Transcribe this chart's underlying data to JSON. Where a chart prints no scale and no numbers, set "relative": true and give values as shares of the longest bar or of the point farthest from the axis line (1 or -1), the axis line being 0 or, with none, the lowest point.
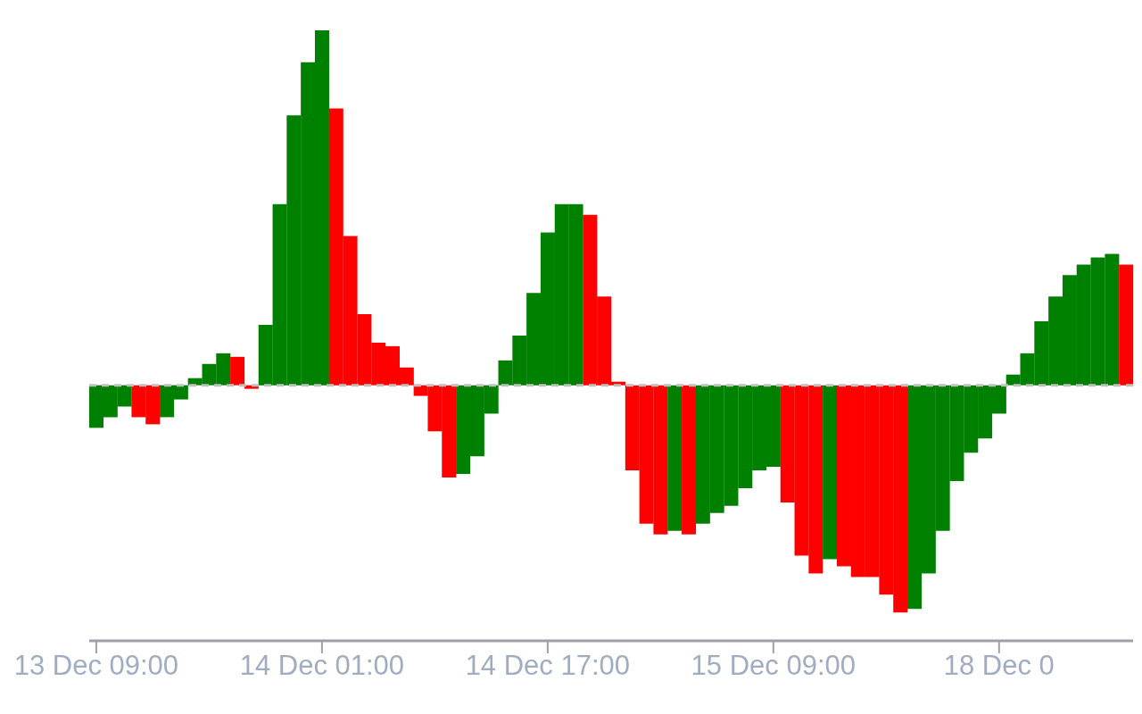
{
  "chart_data": {
    "type": "bar",
    "relative": true,
    "legend": false,
    "grid": false,
    "categories": [
      "13 Dec 09:00",
      null,
      null,
      null,
      null,
      null,
      null,
      null,
      null,
      null,
      null,
      null,
      null,
      null,
      null,
      null,
      "14 Dec 01:00",
      null,
      null,
      null,
      null,
      null,
      null,
      null,
      null,
      null,
      null,
      null,
      null,
      null,
      null,
      null,
      "14 Dec 17:00",
      null,
      null,
      null,
      null,
      null,
      null,
      null,
      null,
      null,
      null,
      null,
      null,
      null,
      null,
      null,
      "15 Dec 09:00",
      null,
      null,
      null,
      null,
      null,
      null,
      null,
      null,
      null,
      null,
      null,
      null,
      null,
      null,
      null,
      "18 Dec 0",
      null,
      null,
      null,
      null,
      null,
      null,
      null,
      null,
      null
    ],
    "values": [
      -0.12,
      -0.09,
      -0.06,
      -0.09,
      -0.11,
      -0.09,
      -0.04,
      0.02,
      0.06,
      0.09,
      0.08,
      -0.01,
      0.17,
      0.51,
      0.76,
      0.91,
      1,
      0.78,
      0.42,
      0.2,
      0.12,
      0.11,
      0.05,
      -0.03,
      -0.13,
      -0.26,
      -0.25,
      -0.2,
      -0.08,
      0.07,
      0.14,
      0.26,
      0.43,
      0.51,
      0.51,
      0.48,
      0.25,
      0.01,
      -0.24,
      -0.39,
      -0.42,
      -0.41,
      -0.42,
      -0.39,
      -0.36,
      -0.34,
      -0.29,
      -0.24,
      -0.23,
      -0.33,
      -0.48,
      -0.53,
      -0.49,
      -0.51,
      -0.54,
      -0.54,
      -0.59,
      -0.64,
      -0.63,
      -0.53,
      -0.41,
      -0.27,
      -0.19,
      -0.15,
      -0.08,
      0.03,
      0.09,
      0.18,
      0.25,
      0.31,
      0.34,
      0.36,
      0.37,
      0.34
    ],
    "colors": [
      "#008000",
      "#008000",
      "#008000",
      "#ff0000",
      "#ff0000",
      "#008000",
      "#008000",
      "#008000",
      "#008000",
      "#008000",
      "#ff0000",
      "#ff0000",
      "#008000",
      "#008000",
      "#008000",
      "#008000",
      "#008000",
      "#ff0000",
      "#ff0000",
      "#ff0000",
      "#ff0000",
      "#ff0000",
      "#ff0000",
      "#ff0000",
      "#ff0000",
      "#ff0000",
      "#008000",
      "#008000",
      "#008000",
      "#008000",
      "#008000",
      "#008000",
      "#008000",
      "#008000",
      "#008000",
      "#ff0000",
      "#ff0000",
      "#ff0000",
      "#ff0000",
      "#ff0000",
      "#ff0000",
      "#008000",
      "#ff0000",
      "#008000",
      "#008000",
      "#008000",
      "#008000",
      "#008000",
      "#008000",
      "#ff0000",
      "#ff0000",
      "#ff0000",
      "#008000",
      "#ff0000",
      "#ff0000",
      "#ff0000",
      "#ff0000",
      "#ff0000",
      "#008000",
      "#008000",
      "#008000",
      "#008000",
      "#008000",
      "#008000",
      "#008000",
      "#008000",
      "#008000",
      "#008000",
      "#008000",
      "#008000",
      "#008000",
      "#008000",
      "#008000",
      "#ff0000"
    ],
    "ref_lines": [
      {
        "axis": "y",
        "value": 0,
        "color": "#c0c0c0",
        "line_style": "dashed"
      }
    ]
  }
}
